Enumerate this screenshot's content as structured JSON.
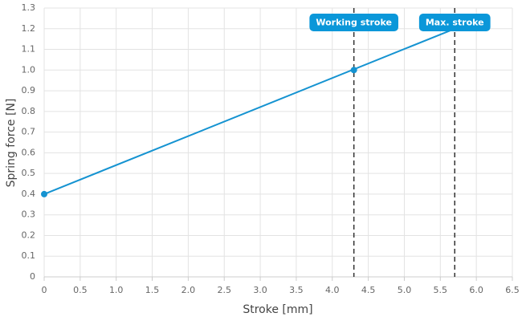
{
  "chart_data": {
    "type": "line",
    "x_label": "Stroke [mm]",
    "y_label": "Spring force [N]",
    "series": [
      {
        "color": "#1593d1",
        "x": [
          0,
          5.7
        ],
        "values": [
          0.4,
          1.2
        ]
      }
    ],
    "markers": {
      "color": "#1593d1",
      "x": [
        0,
        4.3
      ],
      "values": [
        0.4,
        1.0
      ]
    },
    "annotations": [
      {
        "x": 4.3,
        "label": "Working stroke"
      },
      {
        "x": 5.7,
        "label": "Max. stroke"
      }
    ],
    "annotation_color": "#0a97d9",
    "xlim": [
      0,
      6.5
    ],
    "xticks": [
      0,
      0.5,
      {
        "value": 1,
        "label": "1.0"
      },
      1.5,
      {
        "value": 2,
        "label": "2.0"
      },
      2.5,
      {
        "value": 3,
        "label": "3.0"
      },
      3.5,
      {
        "value": 4,
        "label": "4.0"
      },
      4.5,
      {
        "value": 5,
        "label": "5.0"
      },
      5.5,
      {
        "value": 6,
        "label": "6.0"
      },
      6.5
    ],
    "ylim": [
      0,
      1.3
    ],
    "yticks": [
      0,
      0.1,
      0.2,
      0.3,
      0.4,
      0.5,
      0.6,
      0.7,
      0.8,
      0.9,
      {
        "value": 1,
        "label": "1.0"
      },
      1.1,
      1.2,
      1.3
    ],
    "grid": true
  }
}
